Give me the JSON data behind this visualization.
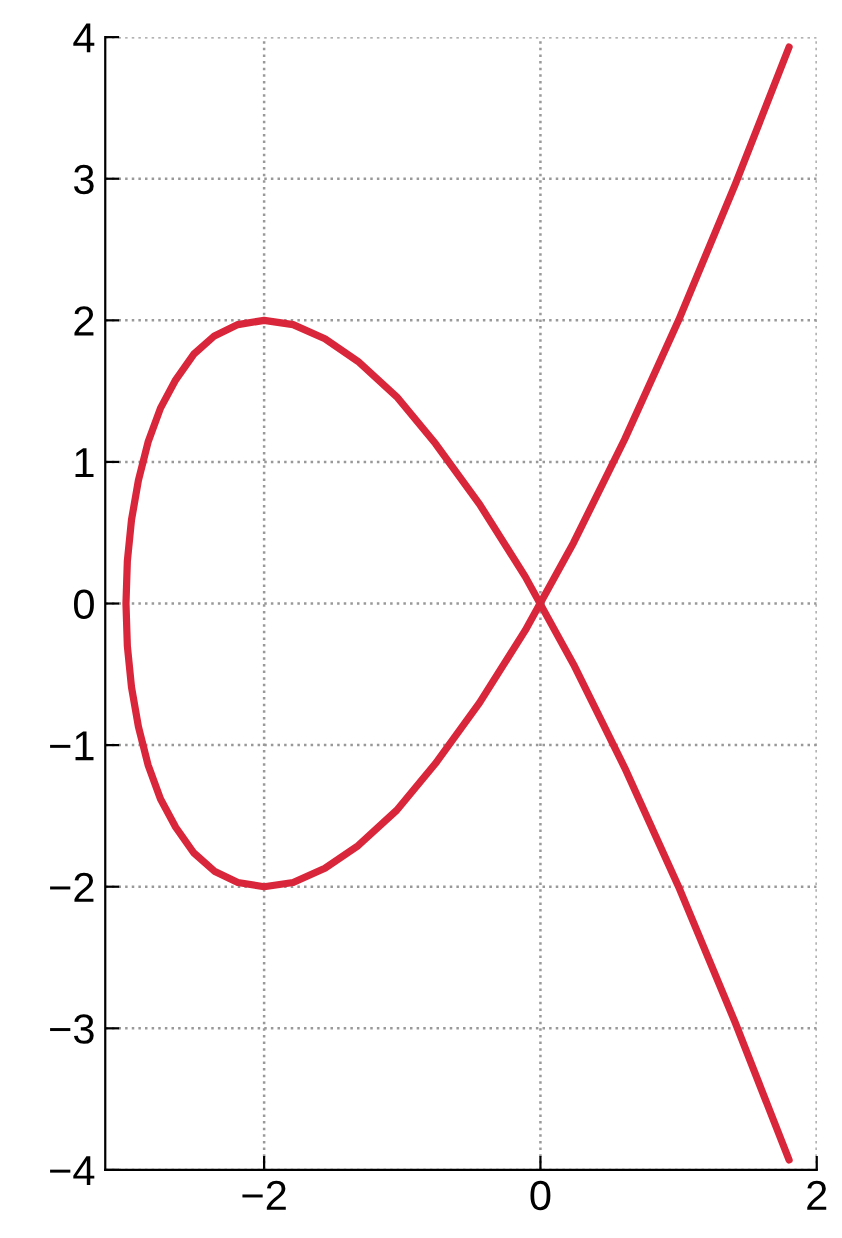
{
  "chart_data": {
    "type": "line",
    "xlim": [
      -3.15,
      2
    ],
    "ylim": [
      -4,
      4
    ],
    "xticks": [
      {
        "value": -2,
        "label": "−2"
      },
      0,
      2
    ],
    "yticks": [
      {
        "value": -4,
        "label": "−4"
      },
      {
        "value": -3,
        "label": "−3"
      },
      {
        "value": -2,
        "label": "−2"
      },
      {
        "value": -1,
        "label": "−1"
      },
      0,
      1,
      2,
      3,
      4
    ],
    "grid": true,
    "line_style": "solid",
    "marker": "none",
    "series": [
      {
        "color": "#d9263a",
        "x": [
          1.8,
          1.41,
          1.0,
          0.61,
          0.24,
          -0.11,
          -0.44,
          -0.76,
          -1.04,
          -1.32,
          -1.56,
          -1.79,
          -2.0,
          -2.19,
          -2.36,
          -2.51,
          -2.64,
          -2.75,
          -2.84,
          -2.91,
          -2.96,
          -2.99,
          -3.0,
          -2.99,
          -2.96,
          -2.91,
          -2.84,
          -2.75,
          -2.64,
          -2.51,
          -2.36,
          -2.19,
          -2.0,
          -1.79,
          -1.56,
          -1.32,
          -1.04,
          -0.76,
          -0.44,
          -0.11,
          0.24,
          0.61,
          1.0,
          1.41,
          1.8
        ],
        "values": [
          -3.93,
          -2.96,
          -2.0,
          -1.16,
          -0.43,
          0.19,
          0.7,
          1.13,
          1.46,
          1.71,
          1.87,
          1.97,
          2.0,
          1.97,
          1.89,
          1.76,
          1.58,
          1.38,
          1.14,
          0.87,
          0.59,
          0.3,
          0.0,
          -0.3,
          -0.59,
          -0.87,
          -1.14,
          -1.38,
          -1.58,
          -1.76,
          -1.89,
          -1.97,
          -2.0,
          -1.97,
          -1.87,
          -1.71,
          -1.46,
          -1.13,
          -0.7,
          -0.19,
          0.43,
          1.16,
          2.0,
          2.96,
          3.93
        ]
      }
    ]
  }
}
